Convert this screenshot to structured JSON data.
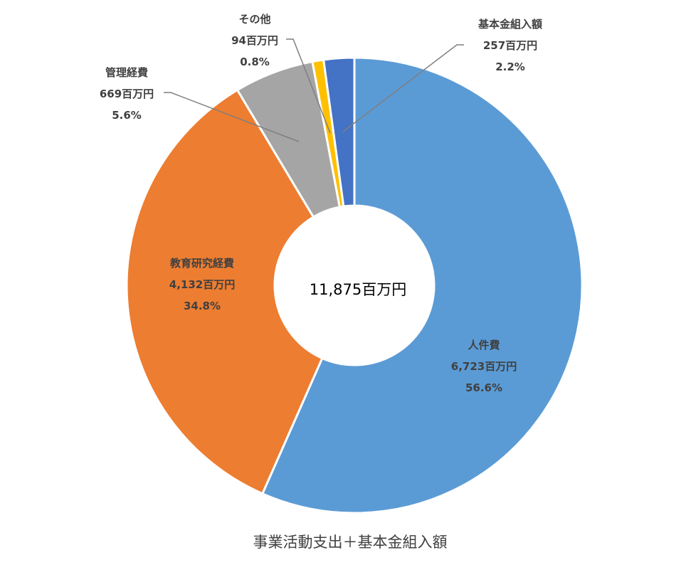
{
  "chart_data": {
    "type": "pie",
    "subtype": "donut",
    "title": "",
    "caption": "事業活動支出＋基本金組入額",
    "center_label": "11,875百万円",
    "start_angle_deg": 0,
    "direction": "clockwise",
    "slices": [
      {
        "name": "人件費",
        "value": 6723,
        "value_label": "6,723百万円",
        "percent_label": "56.6%",
        "color": "#5B9BD5"
      },
      {
        "name": "教育研究経費",
        "value": 4132,
        "value_label": "4,132百万円",
        "percent_label": "34.8%",
        "color": "#ED7D31"
      },
      {
        "name": "管理経費",
        "value": 669,
        "value_label": "669百万円",
        "percent_label": "5.6%",
        "color": "#A5A5A5"
      },
      {
        "name": "その他",
        "value": 94,
        "value_label": "94百万円",
        "percent_label": "0.8%",
        "color": "#FFC000"
      },
      {
        "name": "基本金組入額",
        "value": 257,
        "value_label": "257百万円",
        "percent_label": "2.2%",
        "color": "#4472C4"
      }
    ]
  }
}
